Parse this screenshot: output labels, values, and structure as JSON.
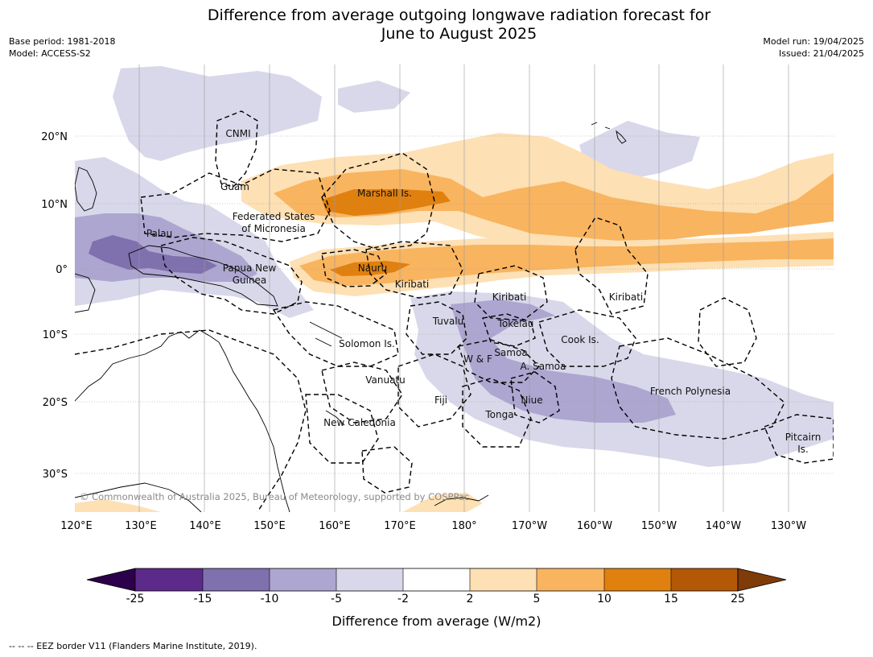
{
  "title_line1": "Difference from average outgoing longwave radiation forecast for",
  "title_line2": "June to August 2025",
  "base_period": "Base period: 1981-2018",
  "model": "Model: ACCESS-S2",
  "model_run": "Model run: 19/04/2025",
  "issued": "Issued: 21/04/2025",
  "copyright": "© Commonwealth of Australia 2025, Bureau of Meteorology, supported by COSPPac",
  "colorbar": {
    "label": "Difference from average (W/m2)",
    "ticks": [
      "-25",
      "-15",
      "-10",
      "-5",
      "-2",
      "2",
      "5",
      "10",
      "15",
      "25"
    ],
    "colors": [
      "#5c2a88",
      "#7f70ae",
      "#ada6d0",
      "#d8d8ea",
      "#ffffff",
      "#fde0b4",
      "#f9b45f",
      "#e0800f",
      "#b35806"
    ],
    "under_color": "#2d004b",
    "over_color": "#7f3b08"
  },
  "lat_labels": [
    "20°N",
    "10°N",
    "0°",
    "10°S",
    "20°S",
    "30°S"
  ],
  "lon_labels": [
    "120°E",
    "130°E",
    "140°E",
    "150°E",
    "160°E",
    "170°E",
    "180°",
    "170°W",
    "160°W",
    "150°W",
    "140°W",
    "130°W"
  ],
  "places": [
    "CNMI",
    "Guam",
    "Marshall Is.",
    "Federated States",
    "of Micronesia",
    "Palau",
    "Papua New",
    "Guinea",
    "Nauru",
    "Kiribati",
    "Kiribati",
    "Kiribati",
    "Tuvalu",
    "Tokelau",
    "Cook Is.",
    "Solomon Is.",
    "Samoa",
    "W & F",
    "A. Samoa",
    "Vanuatu",
    "Fiji",
    "Niue",
    "French Polynesia",
    "Tonga",
    "New Caledonia",
    "Pitcairn",
    "Is."
  ],
  "footer": "--  --  -- EEZ border V11 (Flanders Marine Institute, 2019)."
}
